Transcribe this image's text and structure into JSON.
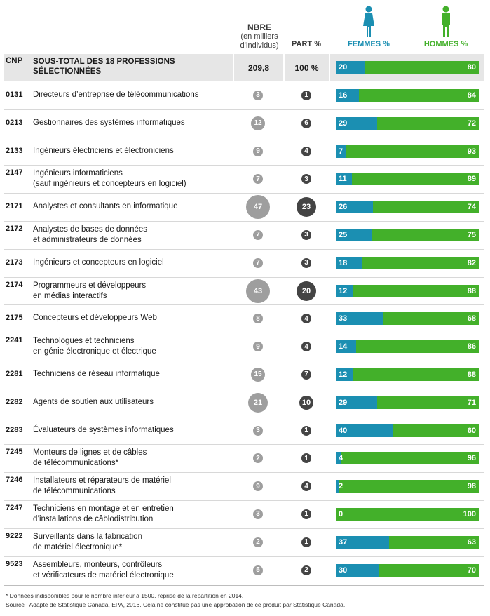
{
  "headers": {
    "nbre": "NBRE",
    "nbre_sub1": "(en milliers",
    "nbre_sub2": "d’individus)",
    "part": "PART %",
    "femmes": "FEMMES %",
    "hommes": "HOMMES %"
  },
  "colors": {
    "femmes": "#1b8fb2",
    "hommes": "#43b02a",
    "circle_nbre": "#9e9e9e",
    "circle_part": "#444444"
  },
  "subtotal": {
    "cnp": "CNP",
    "label_line1": "SOUS-TOTAL DES 18 PROFESSIONS",
    "label_line2": "SÉLECTIONNÉES",
    "nbre": "209,8",
    "part": "100 %",
    "femmes": 20,
    "hommes": 80
  },
  "chart_data": {
    "type": "bar",
    "stacked": true,
    "orientation": "horizontal",
    "series_names": [
      "FEMMES %",
      "HOMMES %"
    ],
    "rows": [
      {
        "cnp": "0131",
        "lines": [
          "Directeurs d’entreprise de télécommunications"
        ],
        "nbre": "3",
        "part": "1",
        "femmes": 16,
        "hommes": 84
      },
      {
        "cnp": "0213",
        "lines": [
          "Gestionnaires des systèmes informatiques"
        ],
        "nbre": "12",
        "part": "6",
        "femmes": 29,
        "hommes": 72
      },
      {
        "cnp": "2133",
        "lines": [
          "Ingénieurs électriciens et électroniciens"
        ],
        "nbre": "9",
        "part": "4",
        "femmes": 7,
        "hommes": 93
      },
      {
        "cnp": "2147",
        "lines": [
          "Ingénieurs informaticiens",
          "(sauf ingénieurs et concepteurs en logiciel)"
        ],
        "nbre": "7",
        "part": "3",
        "femmes": 11,
        "hommes": 89
      },
      {
        "cnp": "2171",
        "lines": [
          "Analystes et consultants en informatique"
        ],
        "nbre": "47",
        "part": "23",
        "femmes": 26,
        "hommes": 74
      },
      {
        "cnp": "2172",
        "lines": [
          "Analystes de bases de données",
          "et administrateurs de données"
        ],
        "nbre": "7",
        "part": "3",
        "femmes": 25,
        "hommes": 75
      },
      {
        "cnp": "2173",
        "lines": [
          "Ingénieurs et concepteurs en logiciel"
        ],
        "nbre": "7",
        "part": "3",
        "femmes": 18,
        "hommes": 82
      },
      {
        "cnp": "2174",
        "lines": [
          "Programmeurs et développeurs",
          "en médias interactifs"
        ],
        "nbre": "43",
        "part": "20",
        "femmes": 12,
        "hommes": 88
      },
      {
        "cnp": "2175",
        "lines": [
          "Concepteurs et développeurs Web"
        ],
        "nbre": "8",
        "part": "4",
        "femmes": 33,
        "hommes": 68
      },
      {
        "cnp": "2241",
        "lines": [
          "Technologues et techniciens",
          "en génie électronique et électrique"
        ],
        "nbre": "9",
        "part": "4",
        "femmes": 14,
        "hommes": 86
      },
      {
        "cnp": "2281",
        "lines": [
          "Techniciens de réseau informatique"
        ],
        "nbre": "15",
        "part": "7",
        "femmes": 12,
        "hommes": 88
      },
      {
        "cnp": "2282",
        "lines": [
          "Agents de soutien aux utilisateurs"
        ],
        "nbre": "21",
        "part": "10",
        "femmes": 29,
        "hommes": 71
      },
      {
        "cnp": "2283",
        "lines": [
          "Évaluateurs de systèmes informatiques"
        ],
        "nbre": "3",
        "part": "1",
        "femmes": 40,
        "hommes": 60
      },
      {
        "cnp": "7245",
        "lines": [
          "Monteurs de lignes et de câbles",
          "de télécommunications*"
        ],
        "nbre": "2",
        "part": "1",
        "femmes": 4,
        "hommes": 96
      },
      {
        "cnp": "7246",
        "lines": [
          "Installateurs et réparateurs de matériel",
          "de télécommunications"
        ],
        "nbre": "9",
        "part": "4",
        "femmes": 2,
        "hommes": 98
      },
      {
        "cnp": "7247",
        "lines": [
          "Techniciens en montage et en entretien",
          "d’installations de câblodistribution"
        ],
        "nbre": "3",
        "part": "1",
        "femmes": 0,
        "hommes": 100
      },
      {
        "cnp": "9222",
        "lines": [
          "Surveillants dans la fabrication",
          "de matériel électronique*"
        ],
        "nbre": "2",
        "part": "1",
        "femmes": 37,
        "hommes": 63
      },
      {
        "cnp": "9523",
        "lines": [
          "Assembleurs, monteurs, contrôleurs",
          "et vérificateurs de matériel électronique"
        ],
        "nbre": "5",
        "part": "2",
        "femmes": 30,
        "hommes": 70
      }
    ]
  },
  "footnotes": {
    "note": "* Données indisponibles pour le nombre inférieur à 1500, reprise de la répartition en 2014.",
    "source": "Source : Adapté de Statistique Canada, EPA, 2016. Cela ne constitue pas une approbation de ce produit par Statistique Canada."
  }
}
